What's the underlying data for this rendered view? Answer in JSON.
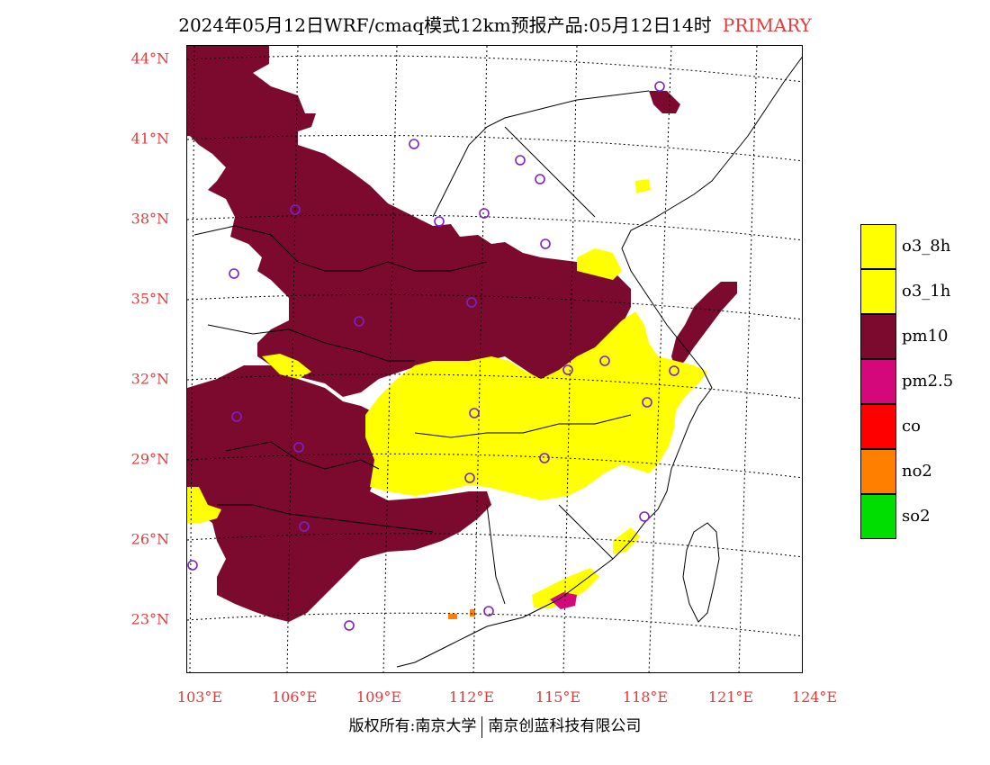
{
  "title": {
    "main": "2024年05月12日WRF/cmaq模式12km预报产品:05月12日14时",
    "tag": "PRIMARY"
  },
  "lat_labels": [
    "44°N",
    "41°N",
    "38°N",
    "35°N",
    "32°N",
    "29°N",
    "26°N",
    "23°N"
  ],
  "lon_labels": [
    "103°E",
    "106°E",
    "109°E",
    "112°E",
    "115°E",
    "118°E",
    "121°E",
    "124°E"
  ],
  "legend": [
    {
      "label": "o3_8h",
      "color": "#ffff00"
    },
    {
      "label": "o3_1h",
      "color": "#ffff00"
    },
    {
      "label": "pm10",
      "color": "#7b0a2e"
    },
    {
      "label": "pm2.5",
      "color": "#d4087a"
    },
    {
      "label": "co",
      "color": "#ff0000"
    },
    {
      "label": "no2",
      "color": "#ff7f00"
    },
    {
      "label": "so2",
      "color": "#00dd00"
    }
  ],
  "colors": {
    "pm10": "#7b0a2e",
    "o3": "#ffff00",
    "pm25": "#d4087a",
    "no2": "#ff7f00",
    "station": "#7a22cc",
    "axis_label": "#e33a3a"
  },
  "footer": {
    "left": "版权所有:南京大学",
    "right": "南京创蓝科技有限公司"
  }
}
